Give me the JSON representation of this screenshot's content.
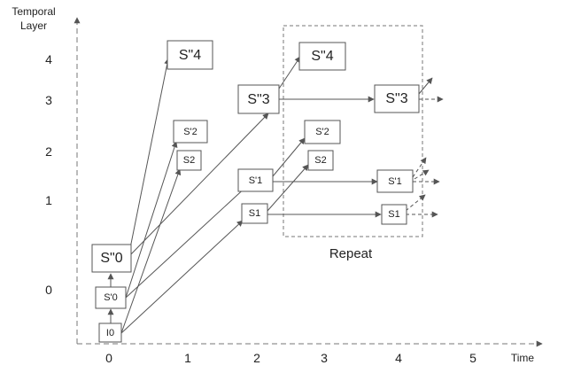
{
  "axes": {
    "y_title_line1": "Temporal",
    "y_title_line2": "Layer",
    "x_title": "Time",
    "y_ticks": [
      "4",
      "3",
      "2",
      "1",
      "0"
    ],
    "x_ticks": [
      "0",
      "1",
      "2",
      "3",
      "4",
      "5"
    ]
  },
  "repeat_label": "Repeat",
  "nodes": {
    "i0": "I0",
    "s_prime_0": "S'0",
    "s_dprime_0": "S\"0",
    "s2_a": "S2",
    "s_prime_2_a": "S'2",
    "s_dprime_4_a": "S\"4",
    "s1_a": "S1",
    "s_prime_1_a": "S'1",
    "s_dprime_3_a": "S\"3",
    "s2_b": "S2",
    "s_prime_2_b": "S'2",
    "s_dprime_4_b": "S\"4",
    "s1_b": "S1",
    "s_prime_1_b": "S'1",
    "s_dprime_3_b": "S\"3"
  },
  "colors": {
    "line": "#555555",
    "dashed": "#777777",
    "text": "#222222"
  }
}
